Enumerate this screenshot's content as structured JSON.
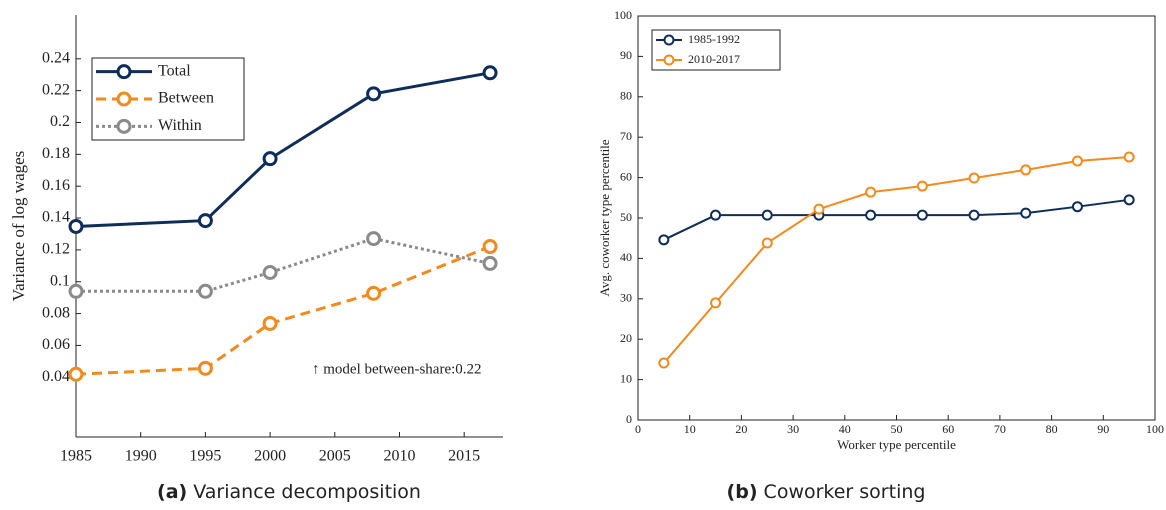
{
  "chart_data": [
    {
      "type": "line",
      "caption": {
        "label": "(a)",
        "text": "Variance decomposition"
      },
      "ylabel": "Variance of log wages",
      "annotation": "↑ model between-share:0.22",
      "x": [
        1985,
        1995,
        2000,
        2008,
        2017
      ],
      "xlim": [
        1985,
        2018
      ],
      "xticks": [
        1985,
        1990,
        1995,
        2000,
        2005,
        2010,
        2015
      ],
      "ylim": [
        0.0025,
        0.2675
      ],
      "yticks": [
        0.04,
        0.06,
        0.08,
        0.1,
        0.12,
        0.14,
        0.16,
        0.18,
        0.2,
        0.22,
        0.24
      ],
      "grid": false,
      "box": false,
      "legend": "upper-left",
      "series": [
        {
          "name": "Total",
          "color": "#0f2d5a",
          "linestyle": "solid",
          "values": [
            0.1347,
            0.1384,
            0.1773,
            0.218,
            0.2312
          ]
        },
        {
          "name": "Between",
          "color": "#f28a1e",
          "linestyle": "dashed",
          "values": [
            0.0419,
            0.0456,
            0.0738,
            0.0927,
            0.1221
          ]
        },
        {
          "name": "Within",
          "color": "#8a8a8a",
          "linestyle": "dotted",
          "values": [
            0.094,
            0.094,
            0.1058,
            0.1271,
            0.1115
          ]
        }
      ]
    },
    {
      "type": "line",
      "caption": {
        "label": "(b)",
        "text": "Coworker sorting"
      },
      "xlabel": "Worker type percentile",
      "ylabel": "Avg. coworker type percentile",
      "x": [
        5,
        15,
        25,
        35,
        45,
        55,
        65,
        75,
        85,
        95
      ],
      "xlim": [
        0,
        100
      ],
      "xticks": [
        0,
        10,
        20,
        30,
        40,
        50,
        60,
        70,
        80,
        90,
        100
      ],
      "ylim": [
        0,
        100
      ],
      "yticks": [
        0,
        10,
        20,
        30,
        40,
        50,
        60,
        70,
        80,
        90,
        100
      ],
      "grid": false,
      "box": true,
      "legend": "upper-left",
      "series": [
        {
          "name": "1985-1992",
          "color": "#0f2d5a",
          "linestyle": "solid",
          "values": [
            44.6,
            50.7,
            50.7,
            50.7,
            50.7,
            50.7,
            50.7,
            51.2,
            52.8,
            54.5
          ]
        },
        {
          "name": "2010-2017",
          "color": "#f28a1e",
          "linestyle": "solid",
          "values": [
            14.1,
            29,
            43.8,
            52.2,
            56.4,
            57.9,
            59.9,
            61.9,
            64.1,
            65.1
          ]
        }
      ]
    }
  ]
}
